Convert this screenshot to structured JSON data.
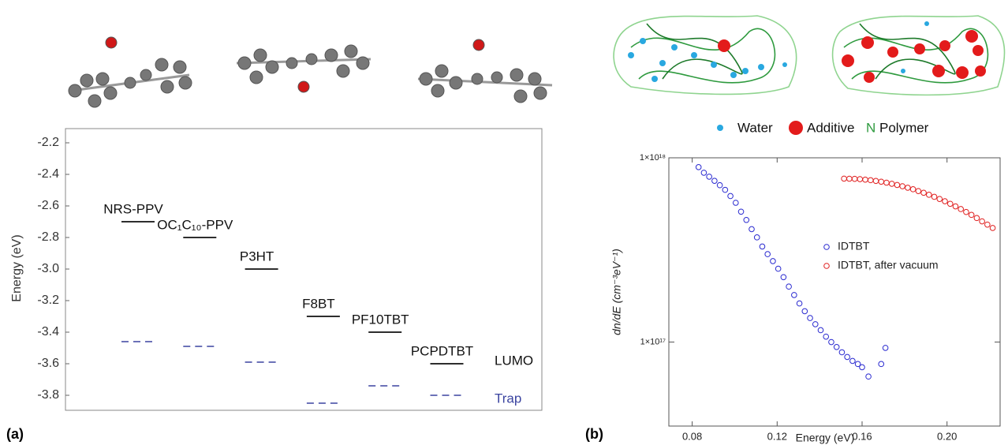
{
  "panel_labels": [
    "(a)",
    "(b)"
  ],
  "illustration": {
    "legend": [
      "Water",
      "Additive",
      "Polymer"
    ]
  },
  "chart_data": [
    {
      "type": "levels",
      "ylabel": "Energy (eV)",
      "categories": [
        "NRS-PPV",
        "OC₁C₁₀-PPV",
        "P3HT",
        "F8BT",
        "PF10TBT",
        "PCPDTBT"
      ],
      "series": [
        {
          "name": "LUMO",
          "color": "#111111",
          "values": [
            -2.7,
            -2.8,
            -3.0,
            -3.3,
            -3.4,
            -3.6
          ]
        },
        {
          "name": "Trap",
          "color": "#3b44a0",
          "values": [
            -3.46,
            -3.49,
            -3.59,
            -3.85,
            -3.74,
            -3.8
          ]
        }
      ],
      "ylim": [
        -3.9,
        -2.1
      ],
      "yticks": [
        -2.2,
        -2.4,
        -2.6,
        -2.8,
        {
          "value": -3.0,
          "label": "-3.0"
        },
        -3.2,
        -3.4,
        -3.6,
        -3.8
      ]
    },
    {
      "type": "scatter",
      "xlabel": "Energy (eV)",
      "ylabel": "dn/dE (cm⁻³eV⁻¹)",
      "log_y": true,
      "series": [
        {
          "name": "IDTBT",
          "color": "#2a2ad0",
          "x": [
            0.083,
            0.0855,
            0.088,
            0.0905,
            0.093,
            0.0955,
            0.098,
            0.1005,
            0.103,
            0.1055,
            0.108,
            0.1105,
            0.113,
            0.1155,
            0.118,
            0.1205,
            0.123,
            0.1255,
            0.128,
            0.1305,
            0.133,
            0.1355,
            0.138,
            0.1405,
            0.143,
            0.1455,
            0.148,
            0.1505,
            0.153,
            0.1555,
            0.158,
            0.16,
            0.163,
            0.169,
            0.171
          ],
          "values": [
            8.9e+17,
            8.3e+17,
            7.9e+17,
            7.5e+17,
            7.1e+17,
            6.7e+17,
            6.2e+17,
            5.7e+17,
            5.1e+17,
            4.6e+17,
            4.1e+17,
            3.7e+17,
            3.3e+17,
            3e+17,
            2.75e+17,
            2.5e+17,
            2.25e+17,
            2e+17,
            1.8e+17,
            1.62e+17,
            1.47e+17,
            1.35e+17,
            1.25e+17,
            1.16e+17,
            1.07e+17,
            1e+17,
            9.4e+16,
            8.8e+16,
            8.3e+16,
            7.9e+16,
            7.6e+16,
            7.3e+16,
            6.5e+16,
            7.6e+16,
            9.3e+16
          ]
        },
        {
          "name": "IDTBT, after vacuum",
          "color": "#e02020",
          "x": [
            0.1515,
            0.154,
            0.1565,
            0.159,
            0.1615,
            0.164,
            0.1665,
            0.169,
            0.1715,
            0.174,
            0.1765,
            0.179,
            0.1815,
            0.184,
            0.1865,
            0.189,
            0.1915,
            0.194,
            0.1965,
            0.199,
            0.2015,
            0.204,
            0.2065,
            0.209,
            0.2115,
            0.214,
            0.2165,
            0.219,
            0.2215
          ],
          "values": [
            7.71e+17,
            7.7e+17,
            7.69e+17,
            7.66e+17,
            7.61e+17,
            7.56e+17,
            7.49e+17,
            7.42e+17,
            7.33e+17,
            7.23e+17,
            7.12e+17,
            7.01e+17,
            6.88e+17,
            6.75e+17,
            6.6e+17,
            6.46e+17,
            6.3e+17,
            6.14e+17,
            5.98e+17,
            5.81e+17,
            5.63e+17,
            5.45e+17,
            5.27e+17,
            5.08e+17,
            4.9e+17,
            4.71e+17,
            4.52e+17,
            4.34e+17,
            4.16e+17
          ]
        }
      ],
      "xlim": [
        0.069,
        0.225
      ],
      "xticks": [
        0.08,
        0.12,
        0.16,
        {
          "value": 0.2,
          "label": "0.20"
        }
      ],
      "ylim": [
        3.5e+16,
        1e+18
      ],
      "yticks": [
        {
          "value": 1e+17,
          "label": "1×10¹⁷"
        },
        {
          "value": 1e+18,
          "label": "1×10¹⁸"
        }
      ]
    }
  ]
}
